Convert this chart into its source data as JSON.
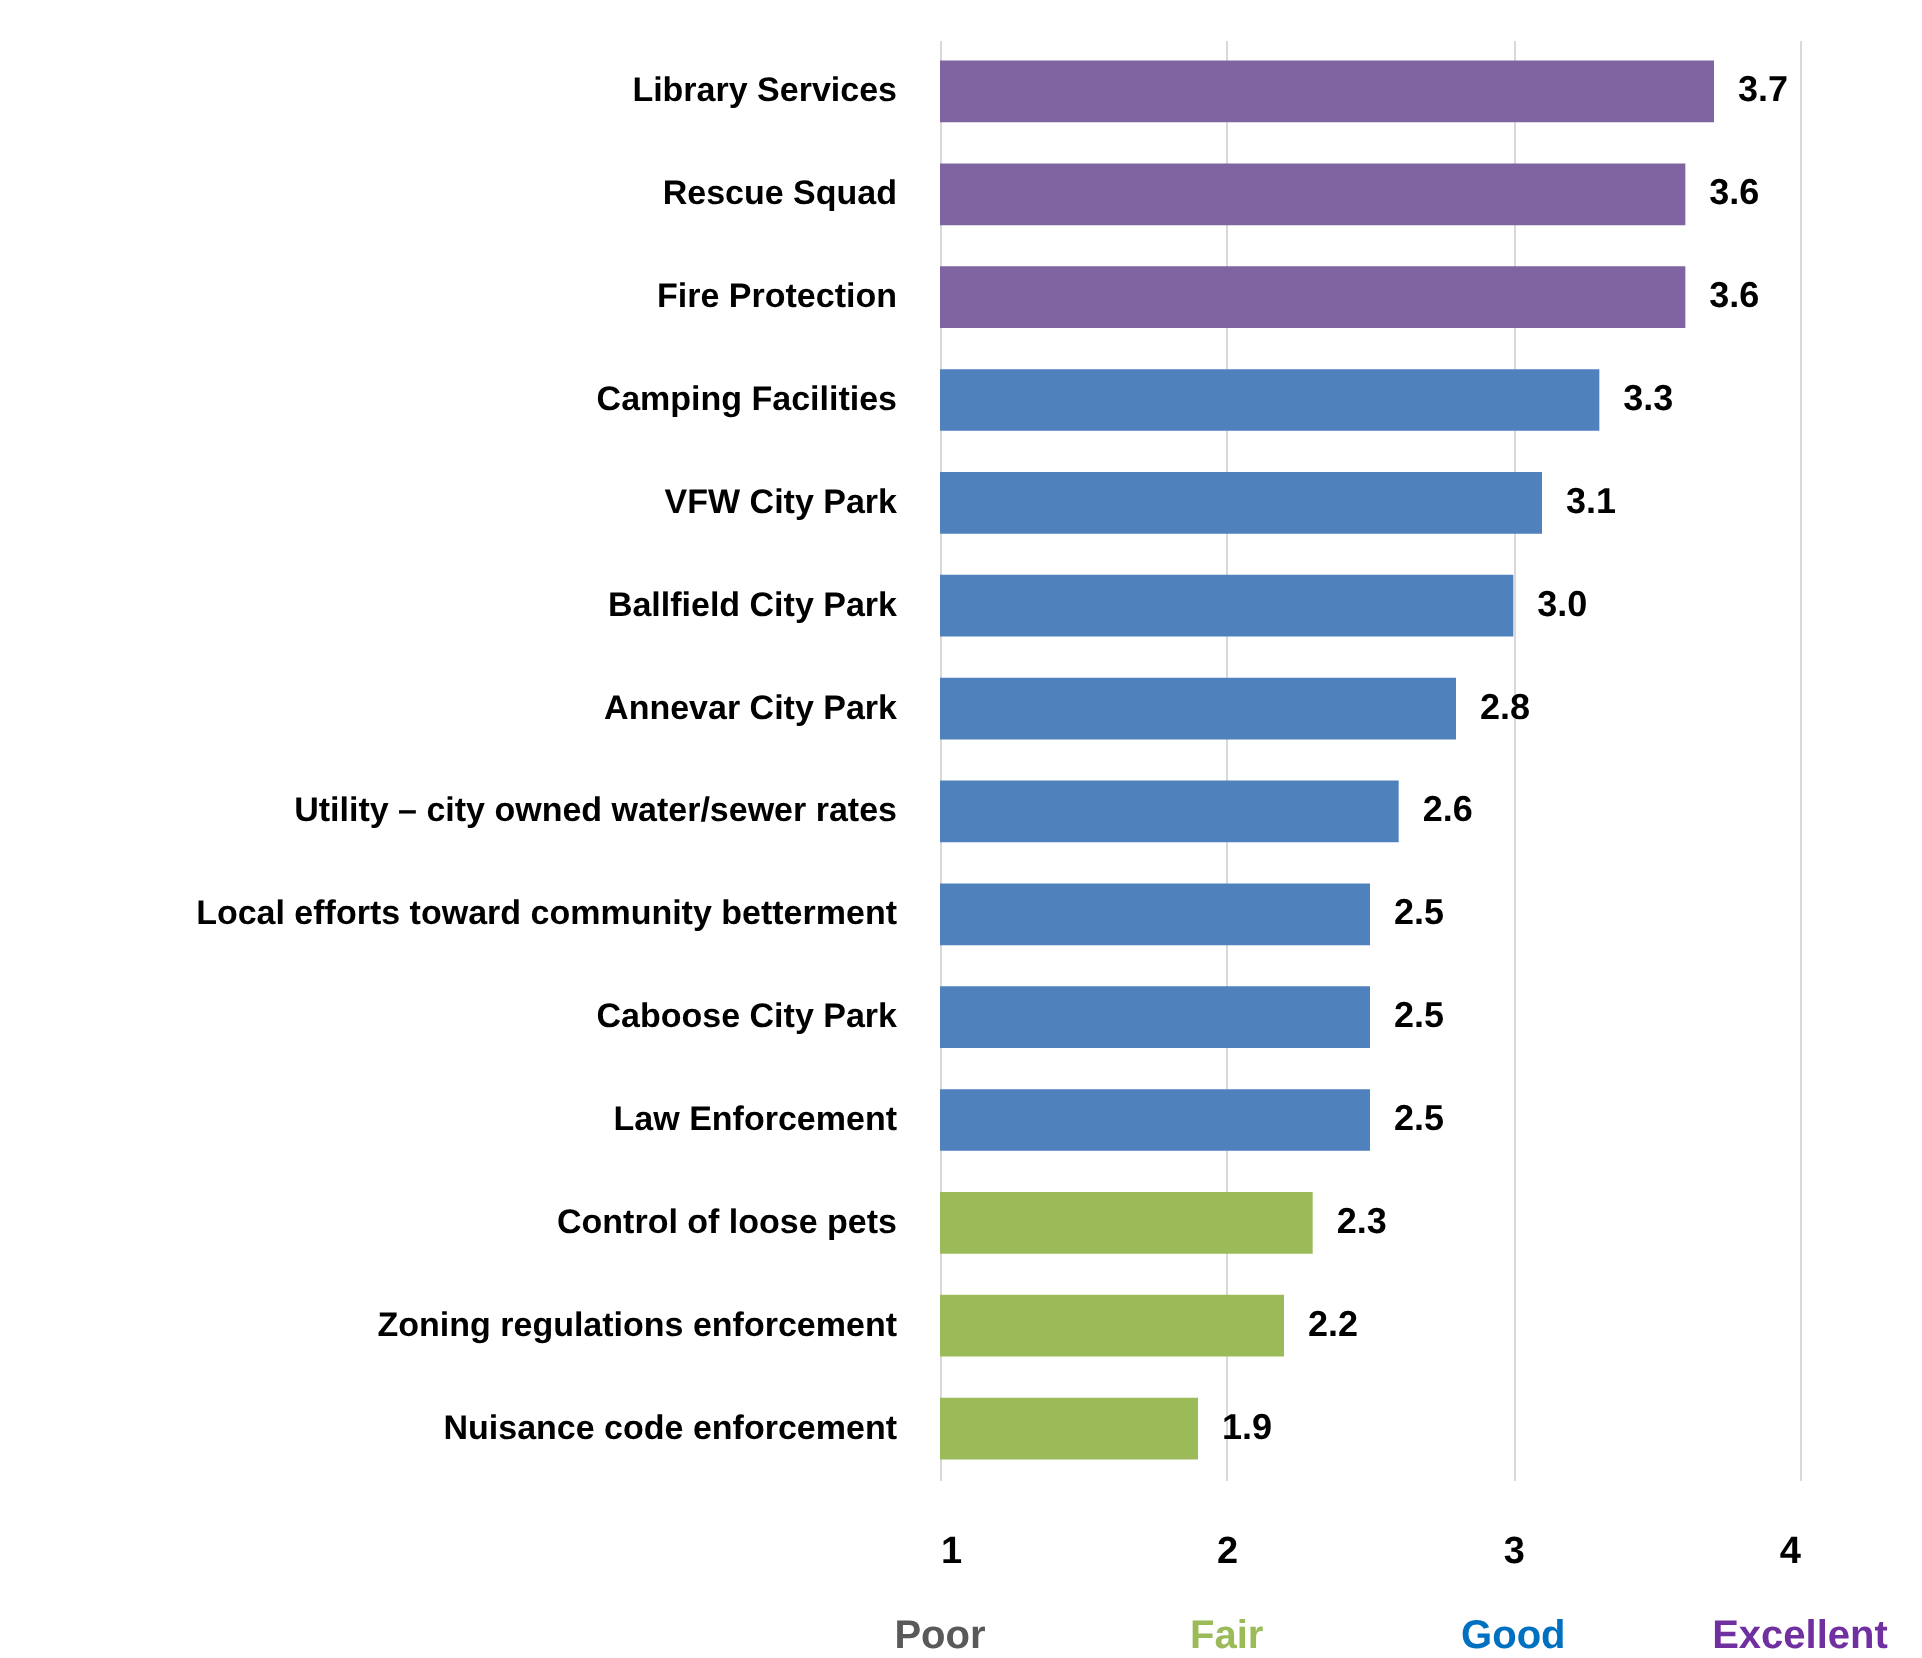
{
  "chart_data": {
    "type": "bar",
    "orientation": "horizontal",
    "categories": [
      "Library Services",
      "Rescue Squad",
      "Fire Protection",
      "Camping Facilities",
      "VFW City Park",
      "Ballfield City Park",
      "Annevar City Park",
      "Utility – city owned water/sewer rates",
      "Local efforts toward community betterment",
      "Caboose City Park",
      "Law Enforcement",
      "Control of loose pets",
      "Zoning regulations enforcement",
      "Nuisance code enforcement"
    ],
    "values": [
      3.7,
      3.6,
      3.6,
      3.3,
      3.1,
      3.0,
      2.8,
      2.6,
      2.5,
      2.5,
      2.5,
      2.3,
      2.2,
      1.9
    ],
    "colors": [
      "#8064a2",
      "#8064a2",
      "#8064a2",
      "#4f81bd",
      "#4f81bd",
      "#4f81bd",
      "#4f81bd",
      "#4f81bd",
      "#4f81bd",
      "#4f81bd",
      "#4f81bd",
      "#9bbb59",
      "#9bbb59",
      "#9bbb59"
    ],
    "value_labels": [
      "3.7",
      "3.6",
      "3.6",
      "3.3",
      "3.1",
      "3.0",
      "2.8",
      "2.6",
      "2.5",
      "2.5",
      "2.5",
      "2.3",
      "2.2",
      "1.9"
    ],
    "xlim": [
      1,
      4
    ],
    "xticks": [
      1,
      2,
      3,
      4
    ],
    "grid": "x",
    "annotations": [
      "Poor",
      "Fair",
      "Good",
      "Excellent"
    ]
  }
}
